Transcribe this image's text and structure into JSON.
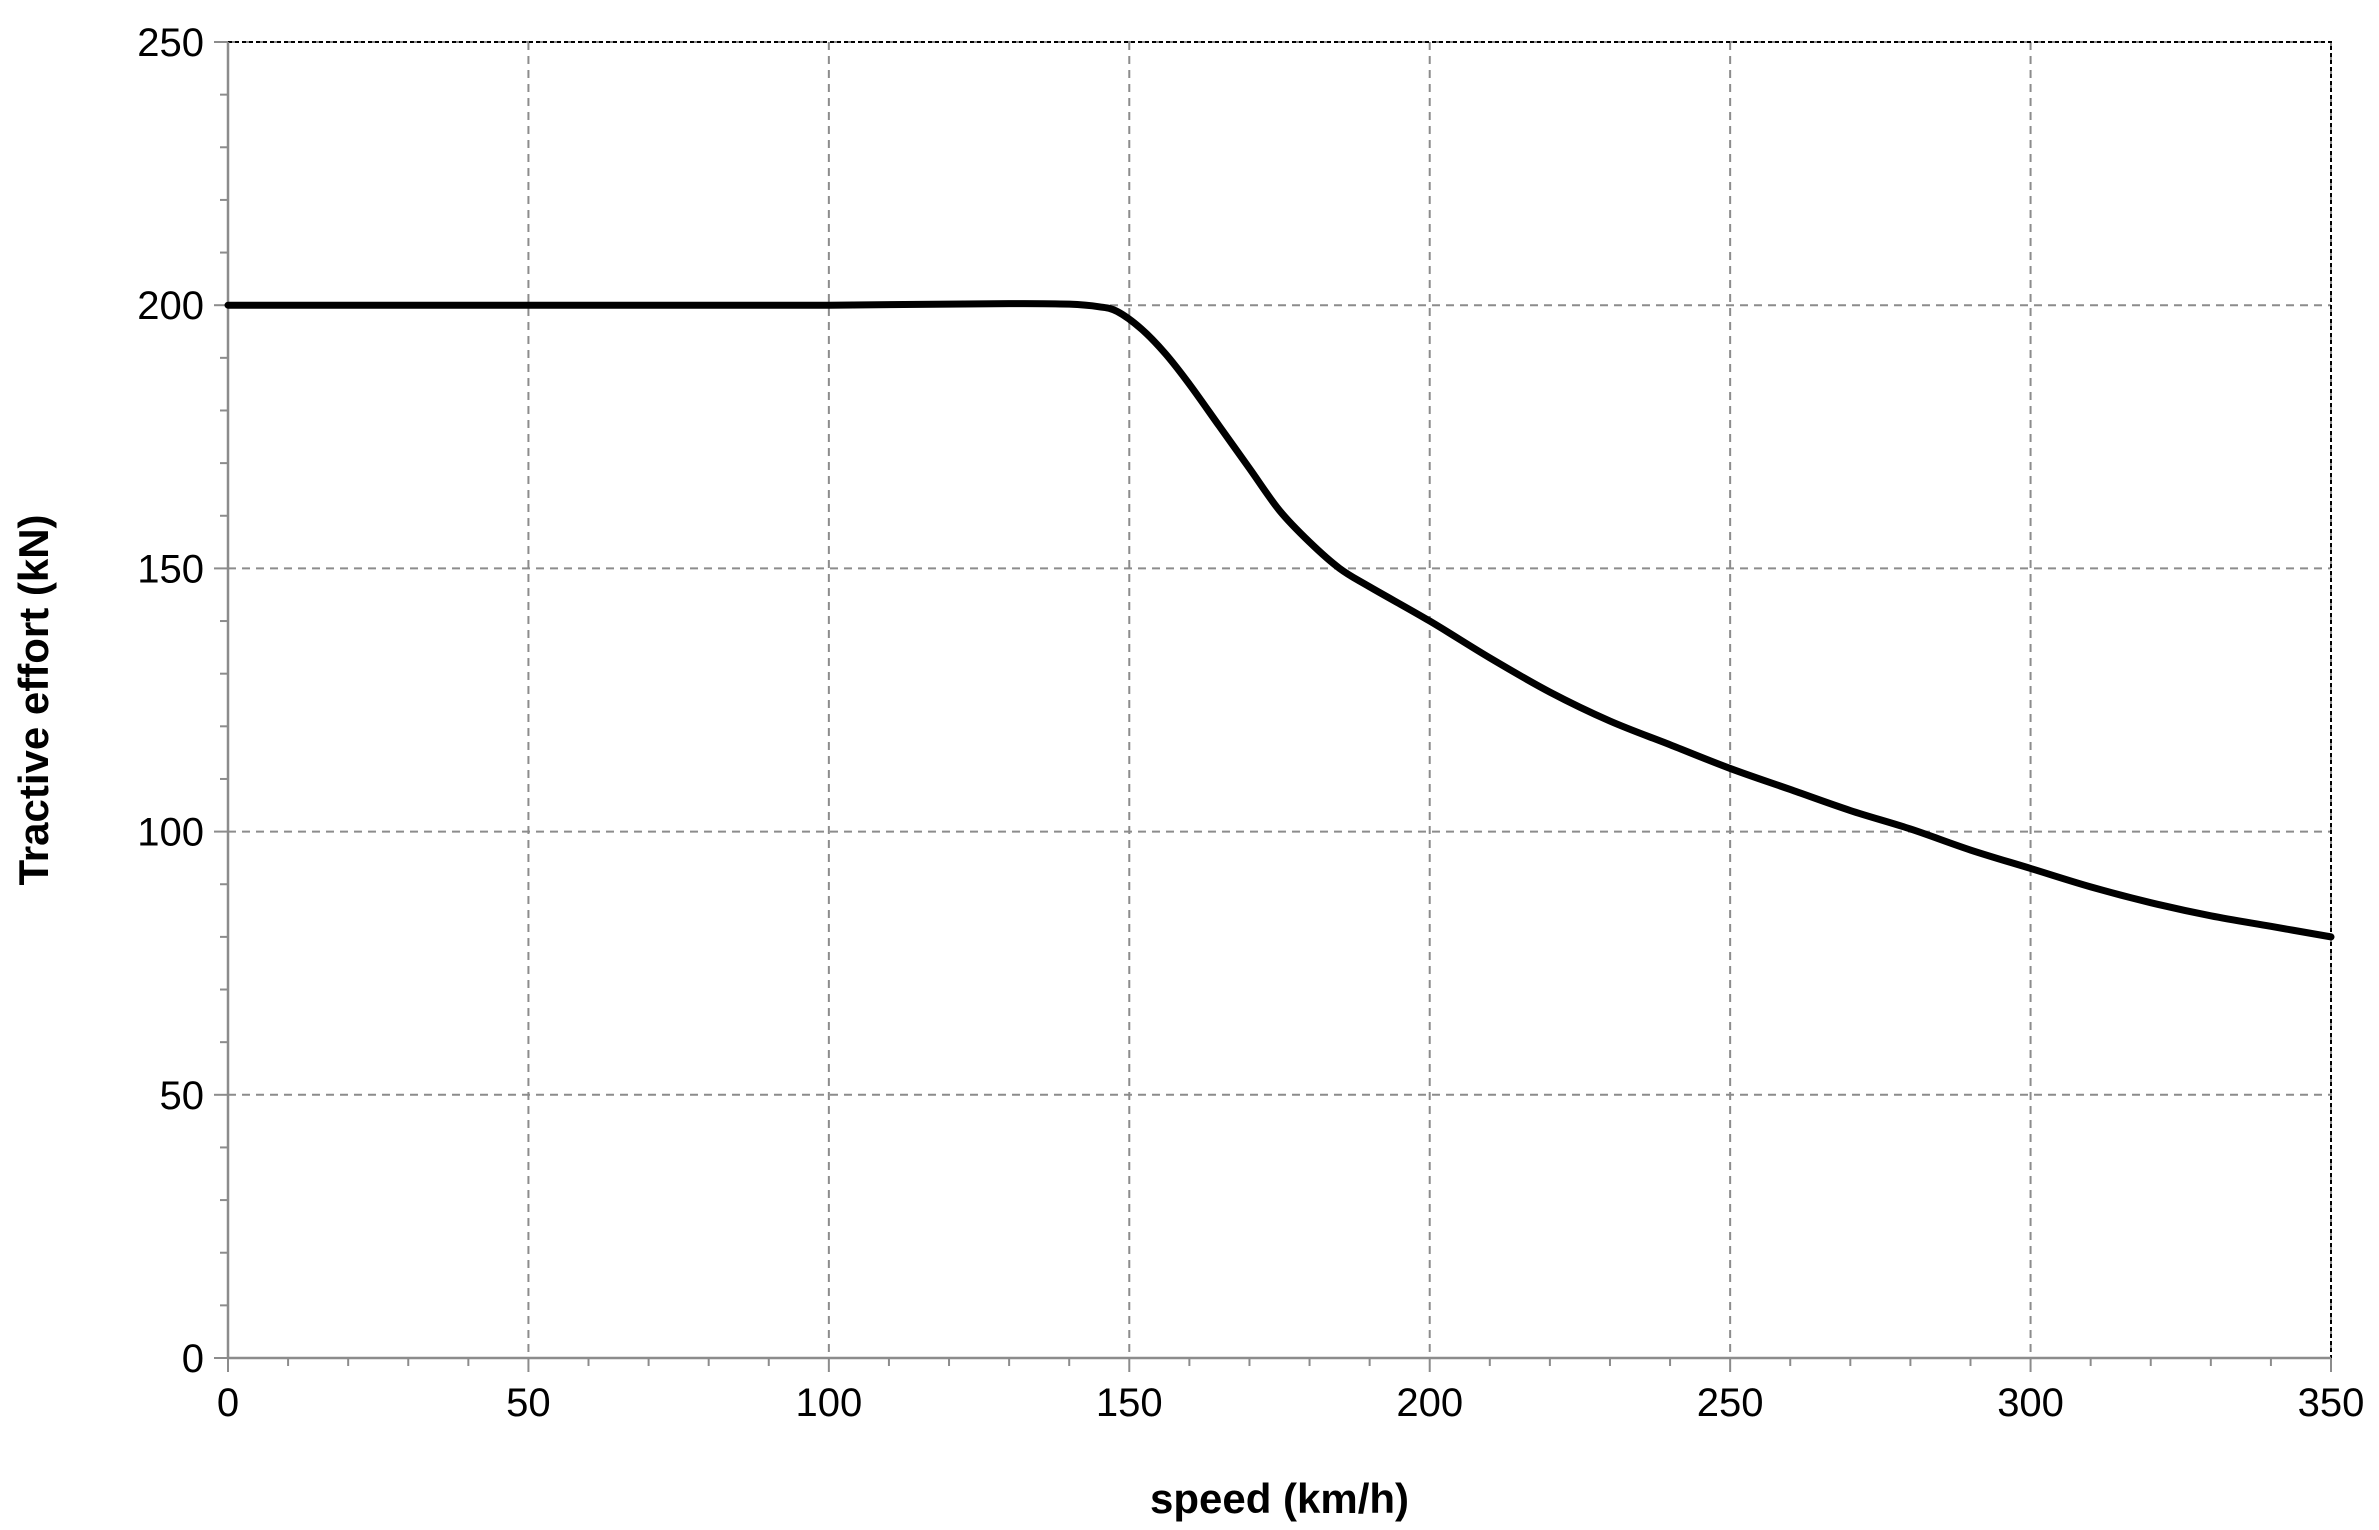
{
  "chart_data": {
    "type": "line",
    "title": "",
    "xlabel": "speed (km/h)",
    "ylabel": "Tractive effort (kN)",
    "xlim": [
      0,
      350
    ],
    "ylim": [
      0,
      250
    ],
    "x_ticks": [
      0,
      50,
      100,
      150,
      200,
      250,
      300,
      350
    ],
    "y_ticks": [
      0,
      50,
      100,
      150,
      200,
      250
    ],
    "x_tick_labels": [
      "0",
      "50",
      "100",
      "150",
      "200",
      "250",
      "300",
      "350"
    ],
    "y_tick_labels": [
      "0",
      "50",
      "100",
      "150",
      "200",
      "250"
    ],
    "grid": true,
    "legend": "none",
    "colors": {
      "series": "#000000",
      "grid": "#8c8c8c"
    },
    "series": [
      {
        "x": [
          0,
          50,
          100,
          130,
          140,
          145,
          148,
          152,
          156,
          160,
          165,
          170,
          175,
          180,
          185,
          190,
          200,
          210,
          220,
          230,
          240,
          250,
          260,
          270,
          280,
          290,
          300,
          310,
          320,
          330,
          340,
          350
        ],
        "y": [
          200,
          200,
          200,
          200.3,
          200.2,
          199.7,
          198.8,
          195.5,
          190.8,
          185.0,
          177.0,
          169.0,
          161.0,
          155.0,
          150.0,
          146.5,
          140.0,
          133.0,
          126.5,
          121.0,
          116.5,
          112.0,
          108.0,
          104.0,
          100.5,
          96.5,
          93.0,
          89.5,
          86.5,
          84.0,
          82.0,
          80.0
        ]
      }
    ]
  }
}
